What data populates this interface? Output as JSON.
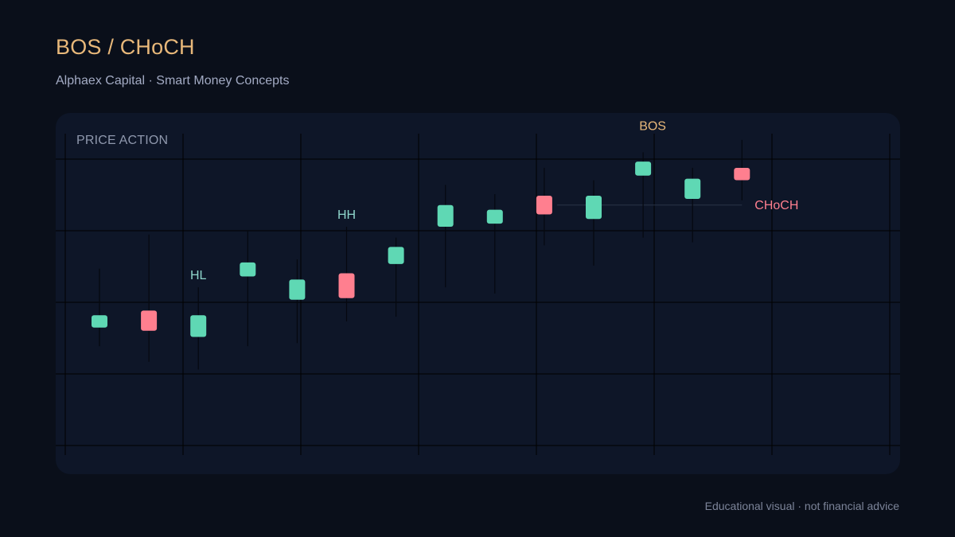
{
  "header": {
    "title": "BOS / CHoCH",
    "subtitle": "Alphaex Capital · Smart Money Concepts"
  },
  "panel": {
    "label": "PRICE ACTION"
  },
  "footer": {
    "disclaimer": "Educational visual · not financial advice"
  },
  "colors": {
    "background": "#0a0f1a",
    "panel": "#0e1628",
    "title": "#e8b87a",
    "bullish": "#5fd8b4",
    "bearish": "#ff7f8f",
    "grid": "#000000",
    "bos_label": "#e8b87a",
    "choch_label": "#ff7f8f",
    "structure_label": "#8fd6cc"
  },
  "chart_data": {
    "type": "candlestick",
    "title": "",
    "xlabel": "",
    "ylabel": "",
    "grid": true,
    "ylim": [
      0,
      100
    ],
    "candles": [
      {
        "index": 1,
        "open": 38.0,
        "close": 42.0,
        "high": 57.0,
        "low": 32.0,
        "direction": "bullish"
      },
      {
        "index": 2,
        "open": 43.5,
        "close": 37.0,
        "high": 68.0,
        "low": 27.0,
        "direction": "bearish"
      },
      {
        "index": 3,
        "open": 35.0,
        "close": 42.0,
        "high": 51.0,
        "low": 24.5,
        "direction": "bullish"
      },
      {
        "index": 4,
        "open": 54.5,
        "close": 59.0,
        "high": 69.0,
        "low": 32.0,
        "direction": "bullish"
      },
      {
        "index": 5,
        "open": 47.0,
        "close": 53.5,
        "high": 60.0,
        "low": 33.0,
        "direction": "bullish"
      },
      {
        "index": 6,
        "open": 55.5,
        "close": 47.5,
        "high": 70.5,
        "low": 40.0,
        "direction": "bearish"
      },
      {
        "index": 7,
        "open": 58.5,
        "close": 64.0,
        "high": 67.0,
        "low": 41.5,
        "direction": "bullish"
      },
      {
        "index": 8,
        "open": 70.5,
        "close": 77.5,
        "high": 84.0,
        "low": 51.0,
        "direction": "bullish"
      },
      {
        "index": 9,
        "open": 71.5,
        "close": 76.0,
        "high": 81.0,
        "low": 49.0,
        "direction": "bullish"
      },
      {
        "index": 10,
        "open": 80.5,
        "close": 74.5,
        "high": 89.5,
        "low": 64.5,
        "direction": "bearish"
      },
      {
        "index": 11,
        "open": 73.0,
        "close": 80.5,
        "high": 85.5,
        "low": 58.0,
        "direction": "bullish"
      },
      {
        "index": 12,
        "open": 87.0,
        "close": 91.5,
        "high": 94.5,
        "low": 67.0,
        "direction": "bullish"
      },
      {
        "index": 13,
        "open": 79.5,
        "close": 86.0,
        "high": 89.5,
        "low": 65.5,
        "direction": "bullish"
      },
      {
        "index": 14,
        "open": 89.5,
        "close": 85.5,
        "high": 98.5,
        "low": 79.0,
        "direction": "bearish"
      }
    ],
    "annotations": [
      {
        "text": "HL",
        "candle": 3,
        "kind": "structure"
      },
      {
        "text": "HH",
        "candle": 6,
        "kind": "structure"
      },
      {
        "text": "BOS",
        "candle": 12,
        "kind": "bos"
      },
      {
        "text": "CHoCH",
        "candle": 14,
        "kind": "choch",
        "level": 77.5,
        "from_candle": 10,
        "to_candle": 14
      }
    ]
  }
}
